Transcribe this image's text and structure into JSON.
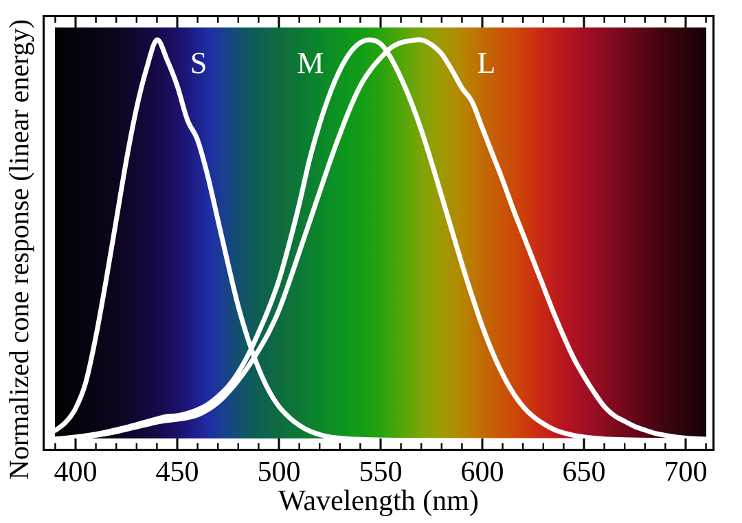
{
  "chart_data": {
    "type": "line",
    "title": "",
    "xlabel": "Wavelength (nm)",
    "ylabel": "Normalized cone response (linear energy)",
    "x_range_nm": [
      390,
      710
    ],
    "y_range": [
      0,
      1.03
    ],
    "x_major_ticks": [
      400,
      450,
      500,
      550,
      600,
      650,
      700
    ],
    "x_tick_labels": [
      "400",
      "450",
      "500",
      "550",
      "600",
      "650",
      "700"
    ],
    "x_minor_tick_step_nm": 10,
    "grid": false,
    "legend_position": "inline-labels",
    "curve_color": "#ffffff",
    "axis_color": "#000000",
    "background_color": "#ffffff",
    "series": [
      {
        "name": "S",
        "peak_nm": 442,
        "label_anchor": {
          "nm": 460.5,
          "value": 0.943
        },
        "points": [
          [
            390,
            0.025
          ],
          [
            395,
            0.045
          ],
          [
            400,
            0.08
          ],
          [
            405,
            0.145
          ],
          [
            410,
            0.26
          ],
          [
            415,
            0.4
          ],
          [
            420,
            0.55
          ],
          [
            425,
            0.7
          ],
          [
            430,
            0.83
          ],
          [
            435,
            0.93
          ],
          [
            440,
            1.0
          ],
          [
            445,
            0.95
          ],
          [
            450,
            0.885
          ],
          [
            455,
            0.8
          ],
          [
            460,
            0.75
          ],
          [
            465,
            0.66
          ],
          [
            470,
            0.55
          ],
          [
            475,
            0.44
          ],
          [
            480,
            0.335
          ],
          [
            485,
            0.25
          ],
          [
            490,
            0.18
          ],
          [
            495,
            0.125
          ],
          [
            500,
            0.085
          ],
          [
            505,
            0.058
          ],
          [
            510,
            0.038
          ],
          [
            515,
            0.024
          ],
          [
            520,
            0.015
          ],
          [
            525,
            0.009
          ],
          [
            530,
            0.006
          ],
          [
            535,
            0.004
          ],
          [
            540,
            0.003
          ],
          [
            545,
            0.002
          ],
          [
            550,
            0.0015
          ],
          [
            555,
            0.001
          ],
          [
            560,
            0.0008
          ],
          [
            565,
            0.0006
          ],
          [
            570,
            0.0004
          ],
          [
            575,
            0.0003
          ],
          [
            580,
            0.0002
          ],
          [
            585,
            0.0002
          ],
          [
            590,
            0.0001
          ],
          [
            595,
            0.0001
          ],
          [
            600,
            0.0001
          ],
          [
            605,
            0
          ],
          [
            610,
            0
          ],
          [
            615,
            0
          ],
          [
            620,
            0
          ],
          [
            625,
            0
          ],
          [
            630,
            0
          ],
          [
            635,
            0
          ],
          [
            640,
            0
          ],
          [
            645,
            0
          ],
          [
            650,
            0
          ],
          [
            655,
            0
          ],
          [
            660,
            0
          ],
          [
            665,
            0
          ],
          [
            670,
            0
          ],
          [
            675,
            0
          ],
          [
            680,
            0
          ],
          [
            685,
            0
          ],
          [
            690,
            0
          ],
          [
            695,
            0
          ],
          [
            700,
            0
          ],
          [
            705,
            0
          ],
          [
            710,
            0
          ]
        ]
      },
      {
        "name": "M",
        "peak_nm": 543,
        "label_anchor": {
          "nm": 515.5,
          "value": 0.943
        },
        "points": [
          [
            390,
            0.004
          ],
          [
            395,
            0.006
          ],
          [
            400,
            0.009
          ],
          [
            405,
            0.012
          ],
          [
            410,
            0.016
          ],
          [
            415,
            0.021
          ],
          [
            420,
            0.027
          ],
          [
            425,
            0.033
          ],
          [
            430,
            0.04
          ],
          [
            435,
            0.047
          ],
          [
            440,
            0.054
          ],
          [
            445,
            0.06
          ],
          [
            450,
            0.062
          ],
          [
            455,
            0.068
          ],
          [
            460,
            0.077
          ],
          [
            465,
            0.09
          ],
          [
            470,
            0.11
          ],
          [
            475,
            0.135
          ],
          [
            480,
            0.17
          ],
          [
            485,
            0.215
          ],
          [
            490,
            0.27
          ],
          [
            495,
            0.33
          ],
          [
            500,
            0.4
          ],
          [
            505,
            0.49
          ],
          [
            510,
            0.59
          ],
          [
            515,
            0.7
          ],
          [
            520,
            0.79
          ],
          [
            525,
            0.865
          ],
          [
            530,
            0.925
          ],
          [
            535,
            0.968
          ],
          [
            540,
            0.993
          ],
          [
            545,
            1.0
          ],
          [
            550,
            0.99
          ],
          [
            555,
            0.955
          ],
          [
            560,
            0.905
          ],
          [
            565,
            0.845
          ],
          [
            570,
            0.775
          ],
          [
            575,
            0.695
          ],
          [
            580,
            0.61
          ],
          [
            585,
            0.525
          ],
          [
            590,
            0.44
          ],
          [
            595,
            0.36
          ],
          [
            600,
            0.285
          ],
          [
            605,
            0.22
          ],
          [
            610,
            0.165
          ],
          [
            615,
            0.12
          ],
          [
            620,
            0.085
          ],
          [
            625,
            0.06
          ],
          [
            630,
            0.042
          ],
          [
            635,
            0.028
          ],
          [
            640,
            0.019
          ],
          [
            645,
            0.013
          ],
          [
            650,
            0.009
          ],
          [
            655,
            0.006
          ],
          [
            660,
            0.004
          ],
          [
            665,
            0.003
          ],
          [
            670,
            0.002
          ],
          [
            675,
            0.0015
          ],
          [
            680,
            0.001
          ],
          [
            685,
            0.0008
          ],
          [
            690,
            0.0006
          ],
          [
            695,
            0.0004
          ],
          [
            700,
            0.0003
          ],
          [
            705,
            0.0002
          ],
          [
            710,
            0.0002
          ]
        ]
      },
      {
        "name": "L",
        "peak_nm": 570,
        "label_anchor": {
          "nm": 602,
          "value": 0.943
        },
        "points": [
          [
            390,
            0.003
          ],
          [
            395,
            0.0045
          ],
          [
            400,
            0.007
          ],
          [
            405,
            0.01
          ],
          [
            410,
            0.013
          ],
          [
            415,
            0.017
          ],
          [
            420,
            0.022
          ],
          [
            425,
            0.028
          ],
          [
            430,
            0.034
          ],
          [
            435,
            0.04
          ],
          [
            440,
            0.046
          ],
          [
            445,
            0.05
          ],
          [
            450,
            0.053
          ],
          [
            455,
            0.057
          ],
          [
            460,
            0.064
          ],
          [
            465,
            0.077
          ],
          [
            470,
            0.095
          ],
          [
            475,
            0.12
          ],
          [
            480,
            0.15
          ],
          [
            485,
            0.185
          ],
          [
            490,
            0.225
          ],
          [
            495,
            0.27
          ],
          [
            500,
            0.325
          ],
          [
            505,
            0.395
          ],
          [
            510,
            0.47
          ],
          [
            515,
            0.545
          ],
          [
            520,
            0.62
          ],
          [
            525,
            0.695
          ],
          [
            530,
            0.765
          ],
          [
            535,
            0.83
          ],
          [
            540,
            0.885
          ],
          [
            545,
            0.925
          ],
          [
            550,
            0.955
          ],
          [
            555,
            0.98
          ],
          [
            560,
            0.993
          ],
          [
            565,
            0.998
          ],
          [
            570,
            1.0
          ],
          [
            575,
            0.988
          ],
          [
            580,
            0.965
          ],
          [
            585,
            0.925
          ],
          [
            590,
            0.88
          ],
          [
            595,
            0.845
          ],
          [
            600,
            0.78
          ],
          [
            605,
            0.715
          ],
          [
            610,
            0.65
          ],
          [
            615,
            0.58
          ],
          [
            620,
            0.515
          ],
          [
            625,
            0.45
          ],
          [
            630,
            0.385
          ],
          [
            635,
            0.32
          ],
          [
            640,
            0.26
          ],
          [
            645,
            0.205
          ],
          [
            650,
            0.16
          ],
          [
            655,
            0.12
          ],
          [
            660,
            0.085
          ],
          [
            665,
            0.062
          ],
          [
            670,
            0.048
          ],
          [
            675,
            0.035
          ],
          [
            680,
            0.026
          ],
          [
            685,
            0.018
          ],
          [
            690,
            0.013
          ],
          [
            695,
            0.009
          ],
          [
            700,
            0.006
          ],
          [
            705,
            0.0045
          ],
          [
            710,
            0.0035
          ]
        ]
      }
    ],
    "spectrum_gradient_stops": [
      [
        390,
        "#030104"
      ],
      [
        405,
        "#070310"
      ],
      [
        420,
        "#0d051f"
      ],
      [
        432,
        "#120734"
      ],
      [
        442,
        "#180a4e"
      ],
      [
        450,
        "#1c1068"
      ],
      [
        458,
        "#1e1c88"
      ],
      [
        466,
        "#1e2fa4"
      ],
      [
        474,
        "#18418a"
      ],
      [
        482,
        "#115468"
      ],
      [
        490,
        "#0e5f52"
      ],
      [
        500,
        "#0e6b41"
      ],
      [
        510,
        "#0d7835"
      ],
      [
        520,
        "#0b872a"
      ],
      [
        530,
        "#0c9420"
      ],
      [
        540,
        "#119d16"
      ],
      [
        550,
        "#27a30e"
      ],
      [
        560,
        "#4fa609"
      ],
      [
        570,
        "#7da405"
      ],
      [
        580,
        "#9f9a04"
      ],
      [
        590,
        "#b58603"
      ],
      [
        600,
        "#c16c03"
      ],
      [
        610,
        "#c95406"
      ],
      [
        618,
        "#cc4408"
      ],
      [
        625,
        "#cc3210"
      ],
      [
        632,
        "#c42218"
      ],
      [
        640,
        "#b8161f"
      ],
      [
        650,
        "#a30f23"
      ],
      [
        660,
        "#8b0b20"
      ],
      [
        670,
        "#72081b"
      ],
      [
        680,
        "#570614"
      ],
      [
        690,
        "#3d040d"
      ],
      [
        700,
        "#280308"
      ],
      [
        710,
        "#140102"
      ]
    ]
  }
}
